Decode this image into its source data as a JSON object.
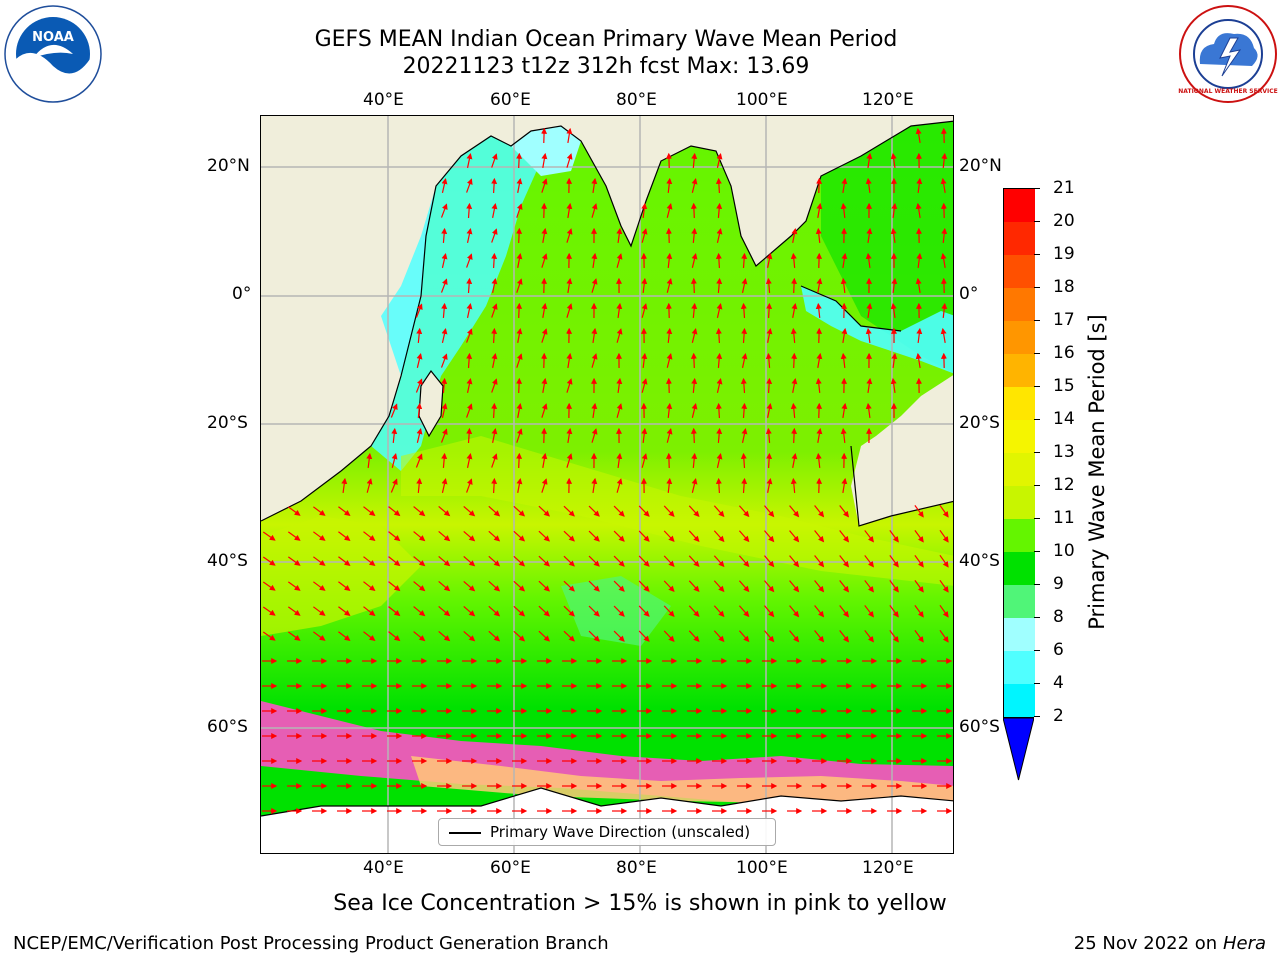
{
  "title": {
    "line1": "GEFS MEAN Indian Ocean Primary Wave Mean Period",
    "line2": "20221123 t12z 312h fcst   Max: 13.69"
  },
  "map": {
    "lon_ticks": [
      "40°E",
      "60°E",
      "80°E",
      "100°E",
      "120°E"
    ],
    "lat_ticks": [
      "20°N",
      "0°",
      "20°S",
      "40°S",
      "60°S"
    ],
    "lon_range": [
      20,
      130
    ],
    "lat_range": [
      -72,
      28
    ],
    "colors": {
      "land": "#f0eedb",
      "ice_free": "#ffffff",
      "grid": "#b5b5b5",
      "arrow": "#ff0000"
    },
    "legend_label": "Primary Wave Direction (unscaled)"
  },
  "colorbar": {
    "title": "Primary Wave Mean Period [s]",
    "labels": [
      "21",
      "20",
      "19",
      "18",
      "17",
      "16",
      "15",
      "14",
      "13",
      "12",
      "11",
      "10",
      "9",
      "8",
      "6",
      "4",
      "2"
    ],
    "colors": [
      "#ff0000",
      "#ff2800",
      "#ff5000",
      "#ff7800",
      "#ff9600",
      "#ffb400",
      "#ffe600",
      "#f5f500",
      "#e1f500",
      "#c8f500",
      "#64f500",
      "#00e100",
      "#50f578",
      "#a0ffff",
      "#50ffff",
      "#00f5ff",
      "#0096ff"
    ]
  },
  "subtitle": "Sea Ice Concentration > 15% is shown in pink to yellow",
  "footer": {
    "left": "NCEP/EMC/Verification Post Processing Product Generation Branch",
    "right_date": "25 Nov 2022 on",
    "right_host": "Hera"
  },
  "logos": {
    "left_text": "NOAA",
    "right_text": "NATIONAL WEATHER SERVICE"
  }
}
